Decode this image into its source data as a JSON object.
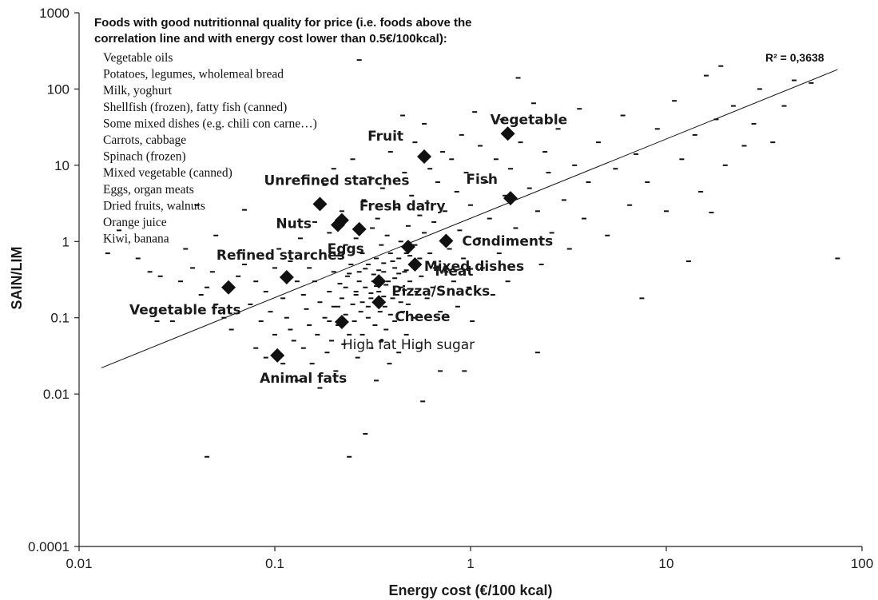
{
  "chart_data": {
    "type": "scatter",
    "x_scale": "log",
    "y_scale": "log",
    "xlabel": "Energy cost (€/100 kcal)",
    "ylabel": "SAIN/LIM",
    "xlim": [
      0.01,
      100
    ],
    "ylim": [
      0.0001,
      1000
    ],
    "x_ticks": [
      "0.01",
      "0.1",
      "1",
      "10",
      "100"
    ],
    "y_ticks": [
      "0.0001",
      "0.01",
      "0.1",
      "1",
      "10",
      "100",
      "1000"
    ],
    "r_squared_label": "R² = 0,3638",
    "regression_line": {
      "x": [
        0.013,
        75
      ],
      "y": [
        0.022,
        180
      ]
    },
    "note_title": [
      "Foods with good nutritionnal quality for price (i.e. foods above the",
      "correlation line and with energy cost lower than 0.5€/100kcal):"
    ],
    "note_items": [
      "Vegetable oils",
      "Potatoes, legumes, wholemeal bread",
      "Milk, yoghurt",
      "Shellfish (frozen), fatty fish (canned)",
      "Some mixed dishes (e.g. chili con carne…)",
      "Carrots, cabbage",
      "Spinach (frozen)",
      "Mixed vegetable (canned)",
      "Eggs, organ meats",
      "Dried fruits, walnuts",
      "Orange juice",
      "Kiwi, banana"
    ],
    "categories": [
      {
        "name": "Vegetable",
        "x": 1.55,
        "y": 26
      },
      {
        "name": "Fruit",
        "x": 0.58,
        "y": 13
      },
      {
        "name": "Fish",
        "x": 1.6,
        "y": 3.7
      },
      {
        "name": "Unrefined starches",
        "x": 0.17,
        "y": 3.1
      },
      {
        "name": "Fresh dairy",
        "x": 0.22,
        "y": 1.9
      },
      {
        "name": "Nuts",
        "x": 0.21,
        "y": 1.65
      },
      {
        "name": "Eggs",
        "x": 0.27,
        "y": 1.45
      },
      {
        "name": "Condiments",
        "x": 0.75,
        "y": 1.02
      },
      {
        "name": "Mixed dishes",
        "x": 0.48,
        "y": 0.85
      },
      {
        "name": "Meat",
        "x": 0.52,
        "y": 0.5
      },
      {
        "name": "Refined starches",
        "x": 0.115,
        "y": 0.34
      },
      {
        "name": "Pizza/Snacks",
        "x": 0.34,
        "y": 0.3
      },
      {
        "name": "Vegetable fats",
        "x": 0.058,
        "y": 0.25
      },
      {
        "name": "Cheese",
        "x": 0.34,
        "y": 0.16
      },
      {
        "name": "High fat High sugar",
        "x": 0.22,
        "y": 0.088
      },
      {
        "name": "Animal fats",
        "x": 0.103,
        "y": 0.032
      }
    ],
    "foods": [
      [
        0.014,
        0.7
      ],
      [
        0.016,
        1.4
      ],
      [
        0.02,
        0.6
      ],
      [
        0.023,
        0.4
      ],
      [
        0.026,
        0.35
      ],
      [
        0.025,
        0.09
      ],
      [
        0.03,
        0.09
      ],
      [
        0.033,
        0.3
      ],
      [
        0.035,
        0.8
      ],
      [
        0.038,
        0.45
      ],
      [
        0.04,
        3.0
      ],
      [
        0.042,
        0.2
      ],
      [
        0.045,
        0.25
      ],
      [
        0.048,
        0.4
      ],
      [
        0.05,
        1.2
      ],
      [
        0.05,
        0.15
      ],
      [
        0.055,
        0.1
      ],
      [
        0.045,
        0.0015
      ],
      [
        0.06,
        0.07
      ],
      [
        0.065,
        0.35
      ],
      [
        0.07,
        0.5
      ],
      [
        0.07,
        2.6
      ],
      [
        0.075,
        0.15
      ],
      [
        0.08,
        0.3
      ],
      [
        0.08,
        0.04
      ],
      [
        0.085,
        0.09
      ],
      [
        0.09,
        0.03
      ],
      [
        0.09,
        0.22
      ],
      [
        0.095,
        0.12
      ],
      [
        0.1,
        0.06
      ],
      [
        0.1,
        0.45
      ],
      [
        0.105,
        0.8
      ],
      [
        0.11,
        0.025
      ],
      [
        0.11,
        0.18
      ],
      [
        0.115,
        0.1
      ],
      [
        0.12,
        0.55
      ],
      [
        0.12,
        0.07
      ],
      [
        0.125,
        0.05
      ],
      [
        0.13,
        0.3
      ],
      [
        0.13,
        0.015
      ],
      [
        0.135,
        1.1
      ],
      [
        0.14,
        0.2
      ],
      [
        0.14,
        0.04
      ],
      [
        0.145,
        0.13
      ],
      [
        0.15,
        0.45
      ],
      [
        0.15,
        0.08
      ],
      [
        0.155,
        0.025
      ],
      [
        0.16,
        1.8
      ],
      [
        0.16,
        0.3
      ],
      [
        0.165,
        0.06
      ],
      [
        0.17,
        0.16
      ],
      [
        0.17,
        0.012
      ],
      [
        0.175,
        0.7
      ],
      [
        0.18,
        0.1
      ],
      [
        0.18,
        5.5
      ],
      [
        0.185,
        0.035
      ],
      [
        0.19,
        0.22
      ],
      [
        0.19,
        1.3
      ],
      [
        0.195,
        0.05
      ],
      [
        0.2,
        0.4
      ],
      [
        0.2,
        0.14
      ],
      [
        0.2,
        9.0
      ],
      [
        0.205,
        0.02
      ],
      [
        0.21,
        0.65
      ],
      [
        0.21,
        0.08
      ],
      [
        0.215,
        0.28
      ],
      [
        0.22,
        2.5
      ],
      [
        0.22,
        0.18
      ],
      [
        0.225,
        0.045
      ],
      [
        0.23,
        0.9
      ],
      [
        0.23,
        0.11
      ],
      [
        0.235,
        0.35
      ],
      [
        0.24,
        0.06
      ],
      [
        0.24,
        0.0015
      ],
      [
        0.245,
        0.5
      ],
      [
        0.25,
        0.15
      ],
      [
        0.25,
        12.0
      ],
      [
        0.255,
        0.09
      ],
      [
        0.26,
        1.1
      ],
      [
        0.26,
        0.22
      ],
      [
        0.265,
        0.03
      ],
      [
        0.27,
        240
      ],
      [
        0.27,
        0.4
      ],
      [
        0.275,
        0.12
      ],
      [
        0.28,
        0.7
      ],
      [
        0.28,
        0.06
      ],
      [
        0.285,
        3.5
      ],
      [
        0.29,
        0.25
      ],
      [
        0.29,
        0.003
      ],
      [
        0.3,
        0.1
      ],
      [
        0.3,
        0.5
      ],
      [
        0.305,
        7.0
      ],
      [
        0.31,
        0.18
      ],
      [
        0.31,
        0.04
      ],
      [
        0.315,
        1.5
      ],
      [
        0.32,
        0.3
      ],
      [
        0.325,
        0.08
      ],
      [
        0.33,
        0.6
      ],
      [
        0.33,
        0.015
      ],
      [
        0.335,
        2.0
      ],
      [
        0.34,
        0.22
      ],
      [
        0.345,
        0.12
      ],
      [
        0.35,
        0.9
      ],
      [
        0.35,
        0.05
      ],
      [
        0.355,
        5.0
      ],
      [
        0.36,
        0.4
      ],
      [
        0.365,
        0.14
      ],
      [
        0.37,
        0.07
      ],
      [
        0.375,
        1.2
      ],
      [
        0.38,
        0.3
      ],
      [
        0.385,
        0.025
      ],
      [
        0.39,
        0.7
      ],
      [
        0.39,
        15.0
      ],
      [
        0.4,
        0.18
      ],
      [
        0.41,
        0.45
      ],
      [
        0.41,
        0.09
      ],
      [
        0.42,
        2.8
      ],
      [
        0.42,
        0.2
      ],
      [
        0.43,
        0.6
      ],
      [
        0.43,
        0.035
      ],
      [
        0.44,
        1.0
      ],
      [
        0.44,
        0.25
      ],
      [
        0.45,
        0.12
      ],
      [
        0.45,
        45.0
      ],
      [
        0.46,
        0.4
      ],
      [
        0.46,
        8.0
      ],
      [
        0.47,
        0.7
      ],
      [
        0.47,
        0.06
      ],
      [
        0.48,
        0.15
      ],
      [
        0.48,
        1.6
      ],
      [
        0.49,
        0.3
      ],
      [
        0.5,
        4.0
      ],
      [
        0.5,
        0.5
      ],
      [
        0.51,
        0.1
      ],
      [
        0.52,
        20.0
      ],
      [
        0.52,
        0.9
      ],
      [
        0.53,
        0.22
      ],
      [
        0.54,
        0.04
      ],
      [
        0.55,
        2.2
      ],
      [
        0.55,
        0.6
      ],
      [
        0.56,
        0.35
      ],
      [
        0.57,
        0.008
      ],
      [
        0.58,
        1.3
      ],
      [
        0.58,
        35.0
      ],
      [
        0.6,
        0.18
      ],
      [
        0.6,
        3.2
      ],
      [
        0.62,
        0.7
      ],
      [
        0.62,
        9.0
      ],
      [
        0.64,
        0.25
      ],
      [
        0.65,
        1.8
      ],
      [
        0.66,
        0.45
      ],
      [
        0.68,
        6.0
      ],
      [
        0.7,
        0.12
      ],
      [
        0.7,
        0.02
      ],
      [
        0.72,
        15.0
      ],
      [
        0.74,
        2.5
      ],
      [
        0.75,
        0.4
      ],
      [
        0.78,
        0.8
      ],
      [
        0.8,
        12.0
      ],
      [
        0.82,
        0.3
      ],
      [
        0.85,
        4.5
      ],
      [
        0.86,
        0.14
      ],
      [
        0.88,
        1.4
      ],
      [
        0.9,
        25.0
      ],
      [
        0.92,
        0.6
      ],
      [
        0.95,
        8.0
      ],
      [
        0.98,
        0.25
      ],
      [
        1.0,
        3.0
      ],
      [
        1.02,
        0.09
      ],
      [
        1.05,
        50.0
      ],
      [
        1.1,
        1.1
      ],
      [
        1.12,
        18.0
      ],
      [
        1.15,
        0.45
      ],
      [
        1.2,
        6.0
      ],
      [
        1.25,
        2.0
      ],
      [
        1.3,
        0.2
      ],
      [
        1.35,
        12.0
      ],
      [
        1.4,
        0.7
      ],
      [
        1.45,
        40.0
      ],
      [
        1.5,
        4.0
      ],
      [
        1.55,
        0.3
      ],
      [
        1.6,
        9.0
      ],
      [
        1.7,
        1.5
      ],
      [
        1.75,
        140
      ],
      [
        1.8,
        20.0
      ],
      [
        1.9,
        0.9
      ],
      [
        2.0,
        5.0
      ],
      [
        2.1,
        65.0
      ],
      [
        2.2,
        2.5
      ],
      [
        2.3,
        0.5
      ],
      [
        2.4,
        15.0
      ],
      [
        2.5,
        8.0
      ],
      [
        2.6,
        1.3
      ],
      [
        2.8,
        30.0
      ],
      [
        3.0,
        3.5
      ],
      [
        3.2,
        0.8
      ],
      [
        3.4,
        10.0
      ],
      [
        3.6,
        55.0
      ],
      [
        3.8,
        2.0
      ],
      [
        4.0,
        6.0
      ],
      [
        4.5,
        20.0
      ],
      [
        5.0,
        1.2
      ],
      [
        5.5,
        9.0
      ],
      [
        6.0,
        45.0
      ],
      [
        6.5,
        3.0
      ],
      [
        7.0,
        14.0
      ],
      [
        7.5,
        0.18
      ],
      [
        8.0,
        6.0
      ],
      [
        9.0,
        30.0
      ],
      [
        10.0,
        2.5
      ],
      [
        11.0,
        70.0
      ],
      [
        12.0,
        12.0
      ],
      [
        13.0,
        0.55
      ],
      [
        14.0,
        25.0
      ],
      [
        15.0,
        4.5
      ],
      [
        16.0,
        150
      ],
      [
        18.0,
        40.0
      ],
      [
        20.0,
        10.0
      ],
      [
        22.0,
        60.0
      ],
      [
        25.0,
        18.0
      ],
      [
        28.0,
        35.0
      ],
      [
        30.0,
        100
      ],
      [
        35.0,
        20.0
      ],
      [
        40.0,
        60.0
      ],
      [
        45.0,
        130
      ],
      [
        55.0,
        120
      ],
      [
        75.0,
        0.6
      ],
      [
        19.0,
        200
      ],
      [
        17.0,
        2.4
      ],
      [
        2.2,
        0.035
      ],
      [
        0.93,
        0.02
      ],
      [
        0.27,
        0.3
      ],
      [
        0.3,
        0.14
      ],
      [
        0.33,
        0.26
      ],
      [
        0.36,
        0.19
      ],
      [
        0.39,
        0.11
      ],
      [
        0.41,
        0.33
      ],
      [
        0.44,
        0.16
      ],
      [
        0.47,
        0.42
      ],
      [
        0.36,
        0.52
      ],
      [
        0.32,
        0.37
      ],
      [
        0.29,
        0.44
      ],
      [
        0.26,
        0.2
      ],
      [
        0.23,
        0.25
      ],
      [
        0.21,
        0.14
      ],
      [
        0.19,
        0.09
      ],
      [
        0.24,
        0.38
      ],
      [
        0.28,
        0.16
      ],
      [
        0.31,
        0.21
      ],
      [
        0.34,
        0.42
      ],
      [
        0.37,
        0.27
      ],
      [
        0.4,
        0.55
      ],
      [
        0.43,
        0.38
      ],
      [
        0.46,
        0.23
      ],
      [
        0.49,
        0.65
      ],
      [
        0.53,
        0.48
      ]
    ]
  }
}
